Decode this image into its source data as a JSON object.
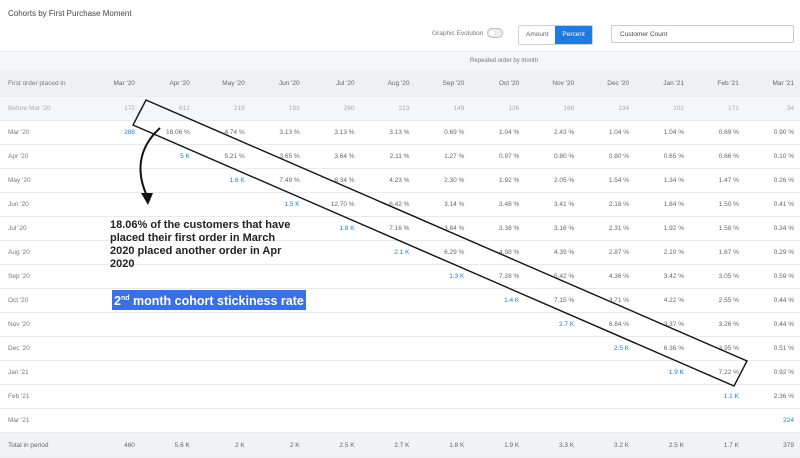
{
  "header": {
    "title": "Cohorts by First Purchase Moment",
    "toggle_label": "Graphic Evolution",
    "amount_label": "Amount",
    "percent_label": "Percent",
    "metric_select": "Customer Count"
  },
  "table": {
    "group_label": "Repeated order by month",
    "first_col_header": "First order placed in",
    "months": [
      "Mar '20",
      "Apr '20",
      "May '20",
      "Jun '20",
      "Jul '20",
      "Aug '20",
      "Sep '20",
      "Oct '20",
      "Nov '20",
      "Dec '20",
      "Jan '21",
      "Feb '21",
      "Mar '21"
    ],
    "rows": [
      {
        "label": "Before Mar '20",
        "cells": [
          "172",
          "612",
          "219",
          "193",
          "260",
          "213",
          "149",
          "126",
          "168",
          "134",
          "102",
          "171",
          "34"
        ]
      },
      {
        "label": "Mar '20",
        "cells": [
          "288",
          "18.06 %",
          "4.74 %",
          "3.13 %",
          "3.13 %",
          "3.13 %",
          "0.69 %",
          "1.04 %",
          "2.43 %",
          "1.04 %",
          "1.04 %",
          "0.69 %",
          "0.90 %"
        ]
      },
      {
        "label": "Apr '20",
        "cells": [
          "",
          "5 K",
          "5.21 %",
          "3.65 %",
          "3.64 %",
          "2.11 %",
          "1.27 %",
          "0.97 %",
          "0.80 %",
          "0.80 %",
          "0.65 %",
          "0.66 %",
          "0.10 %"
        ]
      },
      {
        "label": "May '20",
        "cells": [
          "",
          "",
          "1.6 K",
          "7.49 %",
          "6.34 %",
          "4.23 %",
          "2.30 %",
          "1.92 %",
          "2.05 %",
          "1.54 %",
          "1.34 %",
          "1.47 %",
          "0.26 %"
        ]
      },
      {
        "label": "Jun '20",
        "cells": [
          "",
          "",
          "",
          "1.5 K",
          "12.70 %",
          "6.42 %",
          "3.14 %",
          "3.48 %",
          "3.41 %",
          "2.18 %",
          "1.84 %",
          "1.50 %",
          "0.41 %"
        ]
      },
      {
        "label": "Jul '20",
        "cells": [
          "",
          "",
          "",
          "",
          "1.8 K",
          "7.16 %",
          "3.84 %",
          "3.38 %",
          "3.16 %",
          "2.31 %",
          "1.92 %",
          "1.58 %",
          "0.34 %"
        ]
      },
      {
        "label": "Aug '20",
        "cells": [
          "",
          "",
          "",
          "",
          "",
          "2.1 K",
          "6.29 %",
          "4.98 %",
          "4.39 %",
          "2.87 %",
          "2.10 %",
          "1.67 %",
          "0.29 %"
        ]
      },
      {
        "label": "Sep '20",
        "cells": [
          "",
          "",
          "",
          "",
          "",
          "",
          "1.3 K",
          "7.28 %",
          "5.42 %",
          "4.36 %",
          "3.42 %",
          "3.05 %",
          "0.59 %"
        ]
      },
      {
        "label": "Oct '20",
        "cells": [
          "",
          "",
          "",
          "",
          "",
          "",
          "",
          "1.4 K",
          "7.15 %",
          "3.71 %",
          "4.22 %",
          "2.55 %",
          "0.44 %"
        ]
      },
      {
        "label": "Nov '20",
        "cells": [
          "",
          "",
          "",
          "",
          "",
          "",
          "",
          "",
          "2.7 K",
          "6.84 %",
          "3.37 %",
          "3.26 %",
          "0.44 %"
        ]
      },
      {
        "label": "Dec '20",
        "cells": [
          "",
          "",
          "",
          "",
          "",
          "",
          "",
          "",
          "",
          "2.5 K",
          "6.36 %",
          "3.95 %",
          "0.51 %"
        ]
      },
      {
        "label": "Jan '21",
        "cells": [
          "",
          "",
          "",
          "",
          "",
          "",
          "",
          "",
          "",
          "",
          "1.9 K",
          "7.22 %",
          "0.92 %"
        ]
      },
      {
        "label": "Feb '21",
        "cells": [
          "",
          "",
          "",
          "",
          "",
          "",
          "",
          "",
          "",
          "",
          "",
          "1.1 K",
          "2.36 %"
        ]
      },
      {
        "label": "Mar '21",
        "cells": [
          "",
          "",
          "",
          "",
          "",
          "",
          "",
          "",
          "",
          "",
          "",
          "",
          "224"
        ]
      }
    ],
    "total": {
      "label": "Total in period",
      "cells": [
        "460",
        "5.6 K",
        "2 K",
        "2 K",
        "2.5 K",
        "2.7 K",
        "1.8 K",
        "1.9 K",
        "3.3 K",
        "3.2 K",
        "2.5 K",
        "1.7 K",
        "379"
      ]
    }
  },
  "annotation": {
    "explanation": "18.06% of the customers that have placed their first order in March 2020 placed another order in Apr 2020",
    "stickiness_num": "2",
    "stickiness_sup": "nd",
    "stickiness_rest": " month cohort stickiness rate"
  }
}
